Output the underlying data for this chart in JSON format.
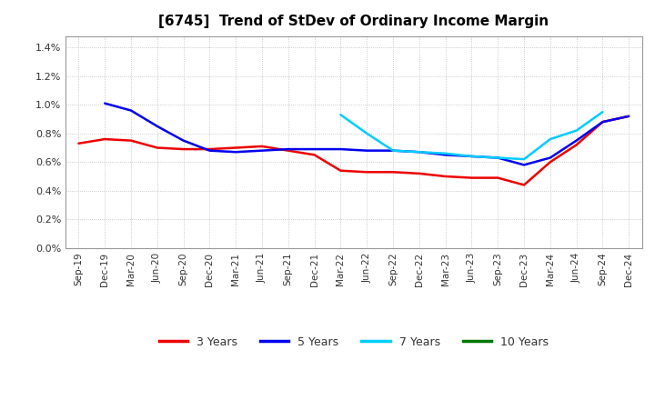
{
  "title": "[6745]  Trend of StDev of Ordinary Income Margin",
  "x_labels": [
    "Sep-19",
    "Dec-19",
    "Mar-20",
    "Jun-20",
    "Sep-20",
    "Dec-20",
    "Mar-21",
    "Jun-21",
    "Sep-21",
    "Dec-21",
    "Mar-22",
    "Jun-22",
    "Sep-22",
    "Dec-22",
    "Mar-23",
    "Jun-23",
    "Sep-23",
    "Dec-23",
    "Mar-24",
    "Jun-24",
    "Sep-24",
    "Dec-24"
  ],
  "series_3yr": {
    "color": "#EE0000",
    "values": [
      0.0073,
      0.0076,
      0.0075,
      0.007,
      0.0069,
      0.0069,
      0.007,
      0.0071,
      0.0068,
      0.0065,
      0.0054,
      0.0053,
      0.0053,
      0.0052,
      0.005,
      0.0049,
      0.0049,
      0.0044,
      0.006,
      0.0072,
      0.0088,
      0.0092
    ]
  },
  "series_5yr": {
    "color": "#0000EE",
    "values": [
      null,
      0.0101,
      0.0096,
      0.0085,
      0.0075,
      0.0068,
      0.0067,
      0.0068,
      0.0069,
      0.0069,
      0.0069,
      0.0068,
      0.0068,
      0.0067,
      0.0065,
      0.0064,
      0.0063,
      0.0058,
      0.0063,
      0.0075,
      0.0088,
      0.0092
    ]
  },
  "series_7yr": {
    "color": "#00CCFF",
    "values": [
      null,
      null,
      null,
      null,
      null,
      null,
      null,
      null,
      null,
      null,
      0.0093,
      0.008,
      0.0068,
      0.0067,
      0.0066,
      0.0064,
      0.0063,
      0.0062,
      0.0076,
      0.0082,
      0.0095,
      null
    ]
  },
  "series_10yr": {
    "color": "#007700",
    "values": [
      null,
      null,
      null,
      null,
      null,
      null,
      null,
      null,
      null,
      null,
      null,
      null,
      null,
      null,
      null,
      null,
      null,
      null,
      null,
      null,
      null,
      null
    ]
  },
  "ylim_max": 0.0148,
  "yticks": [
    0.0,
    0.002,
    0.004,
    0.006,
    0.008,
    0.01,
    0.012,
    0.014
  ],
  "ytick_labels": [
    "0.0%",
    "0.2%",
    "0.4%",
    "0.6%",
    "0.8%",
    "1.0%",
    "1.2%",
    "1.4%"
  ],
  "background_color": "#FFFFFF",
  "grid_color": "#BBBBBB",
  "legend_labels": [
    "3 Years",
    "5 Years",
    "7 Years",
    "10 Years"
  ],
  "legend_colors": [
    "#EE0000",
    "#0000EE",
    "#00CCFF",
    "#007700"
  ],
  "title_fontsize": 11,
  "linewidth": 1.8
}
